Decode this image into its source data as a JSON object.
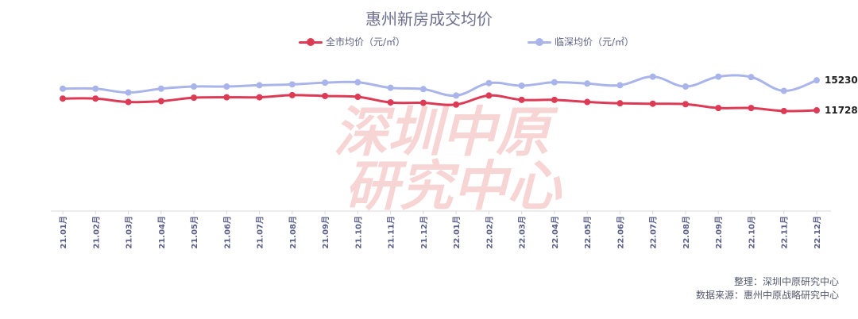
{
  "chart_data": {
    "type": "line",
    "title": "惠州新房成交均价",
    "xlabel": "",
    "ylabel": "",
    "ylim": [
      0,
      17000
    ],
    "grid": false,
    "legend_position": "top-center",
    "categories": [
      "21.01月",
      "21.02月",
      "21.03月",
      "21.04月",
      "21.05月",
      "21.06月",
      "21.07月",
      "21.08月",
      "21.09月",
      "21.10月",
      "21.11月",
      "21.12月",
      "22.01月",
      "22.02月",
      "22.03月",
      "22.04月",
      "22.05月",
      "22.06月",
      "22.07月",
      "22.08月",
      "22.09月",
      "22.10月",
      "22.11月",
      "22.12月"
    ],
    "series": [
      {
        "name": "全市均价（元/㎡）",
        "color": "#dc3a55",
        "values": [
          13100,
          13100,
          12700,
          12800,
          13200,
          13250,
          13250,
          13500,
          13400,
          13300,
          12650,
          12600,
          12400,
          13450,
          12950,
          12950,
          12700,
          12550,
          12500,
          12450,
          12000,
          12000,
          11650,
          11728
        ],
        "end_label": "11728"
      },
      {
        "name": "临深均价（元/㎡）",
        "color": "#a9b4ea",
        "values": [
          14250,
          14250,
          13800,
          14250,
          14500,
          14500,
          14650,
          14750,
          14950,
          15000,
          14350,
          14200,
          13450,
          14900,
          14600,
          15000,
          14850,
          14650,
          15650,
          14500,
          15650,
          15600,
          14000,
          15230
        ],
        "end_label": "15230"
      }
    ]
  },
  "watermark": "深圳中原研究中心",
  "notes": {
    "line1": "整理：深圳中原研究中心",
    "line2": "数据来源：惠州中原战略研究中心"
  }
}
